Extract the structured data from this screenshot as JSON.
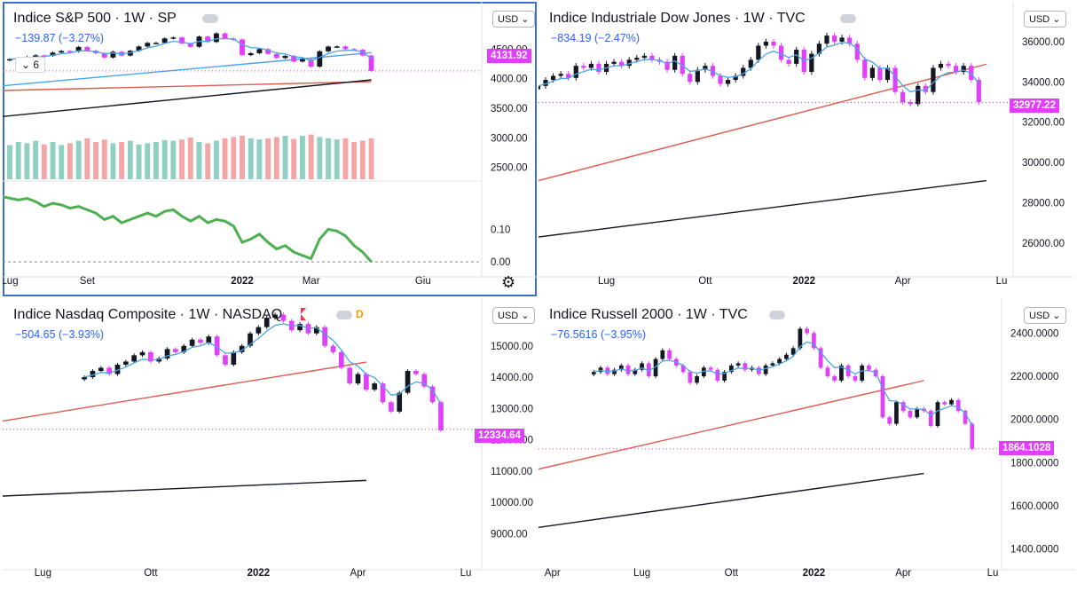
{
  "chart_data": [
    {
      "type": "candlestick",
      "title": "Indice S&P 500",
      "interval": "1W",
      "exchange": "SP",
      "change": "−139.87 (−3.27%)",
      "collapse_count": "6",
      "currency": "USD",
      "last_price": "4131.92",
      "y_ticks": [
        "4500.00",
        "4000.00",
        "3500.00",
        "3000.00",
        "2500.00"
      ],
      "y_range": [
        2300,
        4850
      ],
      "osc_ticks": [
        "0.10",
        "0.00"
      ],
      "osc_range": [
        -0.005,
        0.24
      ],
      "x_labels": [
        {
          "label": "Lug",
          "x": 0
        },
        {
          "label": "Set",
          "x": 9
        },
        {
          "label": "2022",
          "x": 27
        },
        {
          "label": "Mar",
          "x": 35
        },
        {
          "label": "Giu",
          "x": 48
        }
      ],
      "x_count": 55,
      "close": [
        4330,
        4352,
        4369,
        4395,
        4387,
        4441,
        4468,
        4458,
        4536,
        4473,
        4432,
        4358,
        4455,
        4391,
        4471,
        4544,
        4605,
        4605,
        4681,
        4697,
        4595,
        4539,
        4712,
        4620,
        4766,
        4678,
        4663,
        4398,
        4431,
        4500,
        4419,
        4349,
        4385,
        4289,
        4328,
        4204,
        4463,
        4543,
        4545,
        4500,
        4488,
        4392,
        4131
      ],
      "ma1": [
        3800,
        3950
      ],
      "ma2": [
        3360,
        3980
      ],
      "ma3": [
        3880,
        4440
      ],
      "volume": [
        0.55,
        0.6,
        0.58,
        0.62,
        0.56,
        0.6,
        0.55,
        0.58,
        0.62,
        0.66,
        0.6,
        0.64,
        0.58,
        0.6,
        0.62,
        0.56,
        0.58,
        0.6,
        0.63,
        0.62,
        0.64,
        0.67,
        0.6,
        0.58,
        0.62,
        0.66,
        0.68,
        0.7,
        0.66,
        0.64,
        0.66,
        0.68,
        0.7,
        0.65,
        0.7,
        0.72,
        0.68,
        0.66,
        0.64,
        0.66,
        0.6,
        0.62,
        0.66
      ],
      "oscillator": [
        0.2,
        0.19,
        0.195,
        0.185,
        0.17,
        0.18,
        0.175,
        0.165,
        0.17,
        0.16,
        0.15,
        0.13,
        0.14,
        0.12,
        0.13,
        0.14,
        0.15,
        0.14,
        0.155,
        0.16,
        0.14,
        0.125,
        0.14,
        0.12,
        0.13,
        0.125,
        0.11,
        0.06,
        0.07,
        0.085,
        0.06,
        0.04,
        0.05,
        0.03,
        0.02,
        0.01,
        0.07,
        0.1,
        0.095,
        0.08,
        0.05,
        0.03,
        0.0
      ]
    },
    {
      "type": "candlestick",
      "title": "Indice Industriale Dow Jones",
      "interval": "1W",
      "exchange": "TVC",
      "change": "−834.19 (−2.47%)",
      "currency": "USD",
      "last_price": "32977.22",
      "y_ticks": [
        "36000.00",
        "34000.00",
        "32000.00",
        "30000.00",
        "28000.00",
        "26000.00"
      ],
      "y_range": [
        25200,
        37100
      ],
      "x_labels": [
        {
          "label": "Lug",
          "x": 8
        },
        {
          "label": "Ott",
          "x": 21
        },
        {
          "label": "2022",
          "x": 34
        },
        {
          "label": "Apr",
          "x": 47
        },
        {
          "label": "Lu",
          "x": 60
        }
      ],
      "x_count": 61,
      "close": [
        33800,
        34100,
        34300,
        34400,
        34200,
        34800,
        34700,
        34900,
        34500,
        34900,
        35000,
        34800,
        35100,
        35200,
        35300,
        35100,
        35000,
        34600,
        35300,
        34400,
        34000,
        34600,
        34800,
        34300,
        33900,
        34100,
        34300,
        34700,
        35100,
        35800,
        36000,
        35800,
        35100,
        34900,
        35600,
        34500,
        35400,
        35900,
        36300,
        36000,
        36200,
        35900,
        35100,
        34200,
        34700,
        34100,
        34700,
        33500,
        33000,
        32900,
        33800,
        33500,
        34700,
        34900,
        34800,
        34500,
        34800,
        34100,
        33000
      ],
      "ma1": [
        29100,
        34880
      ],
      "ma2": [
        26300,
        29100
      ]
    },
    {
      "type": "candlestick",
      "title": "Indice Nasdaq Composite",
      "interval": "1W",
      "exchange": "NASDAQ",
      "change": "−504.65 (−3.93%)",
      "currency": "USD",
      "last_price": "12334.64",
      "badge": "D",
      "y_ticks": [
        "15000.00",
        "14000.00",
        "13000.00",
        "12000.00",
        "11000.00",
        "10000.00",
        "9000.00"
      ],
      "y_range": [
        8300,
        16100
      ],
      "x_labels": [
        {
          "label": "Lug",
          "x": 4
        },
        {
          "label": "Ott",
          "x": 17
        },
        {
          "label": "2022",
          "x": 30
        },
        {
          "label": "Apr",
          "x": 42
        },
        {
          "label": "Lu",
          "x": 55
        }
      ],
      "x_count": 56,
      "close": [
        14000,
        14200,
        14300,
        14100,
        14400,
        14500,
        14700,
        14800,
        14500,
        14600,
        14900,
        14800,
        15000,
        15200,
        15100,
        15300,
        14700,
        14400,
        14800,
        15000,
        15400,
        15600,
        15900,
        16000,
        15800,
        15500,
        15700,
        15400,
        15600,
        15000,
        14800,
        14300,
        13800,
        14100,
        13600,
        13800,
        13200,
        12900,
        13500,
        14200,
        14100,
        13700,
        13200,
        12300
      ],
      "ma1": [
        12600,
        14480
      ],
      "ma2": [
        10200,
        10700
      ]
    },
    {
      "type": "candlestick",
      "title": "Indice Russell 2000",
      "interval": "1W",
      "exchange": "TVC",
      "change": "−76.5616 (−3.95%)",
      "currency": "USD",
      "last_price": "1864.1028",
      "y_ticks": [
        "2400.0000",
        "2200.0000",
        "2000.0000",
        "1800.0000",
        "1600.0000",
        "1400.0000"
      ],
      "y_range": [
        1370,
        2500
      ],
      "x_labels": [
        {
          "label": "Apr",
          "x": 1
        },
        {
          "label": "Lug",
          "x": 14
        },
        {
          "label": "Ott",
          "x": 27
        },
        {
          "label": "2022",
          "x": 39
        },
        {
          "label": "Apr",
          "x": 52
        },
        {
          "label": "Lu",
          "x": 65
        }
      ],
      "x_count": 66,
      "close": [
        2220,
        2240,
        2210,
        2230,
        2250,
        2210,
        2230,
        2260,
        2200,
        2280,
        2320,
        2280,
        2250,
        2220,
        2170,
        2200,
        2240,
        2230,
        2180,
        2220,
        2250,
        2260,
        2230,
        2240,
        2210,
        2250,
        2260,
        2280,
        2300,
        2330,
        2420,
        2400,
        2330,
        2240,
        2200,
        2180,
        2250,
        2200,
        2180,
        2250,
        2230,
        2200,
        2010,
        1980,
        2080,
        2040,
        2010,
        2050,
        2040,
        1970,
        2080,
        2070,
        2090,
        2040,
        1980,
        1864
      ],
      "ma1": [
        1770,
        2180
      ],
      "ma2": [
        1500,
        1750
      ]
    }
  ]
}
